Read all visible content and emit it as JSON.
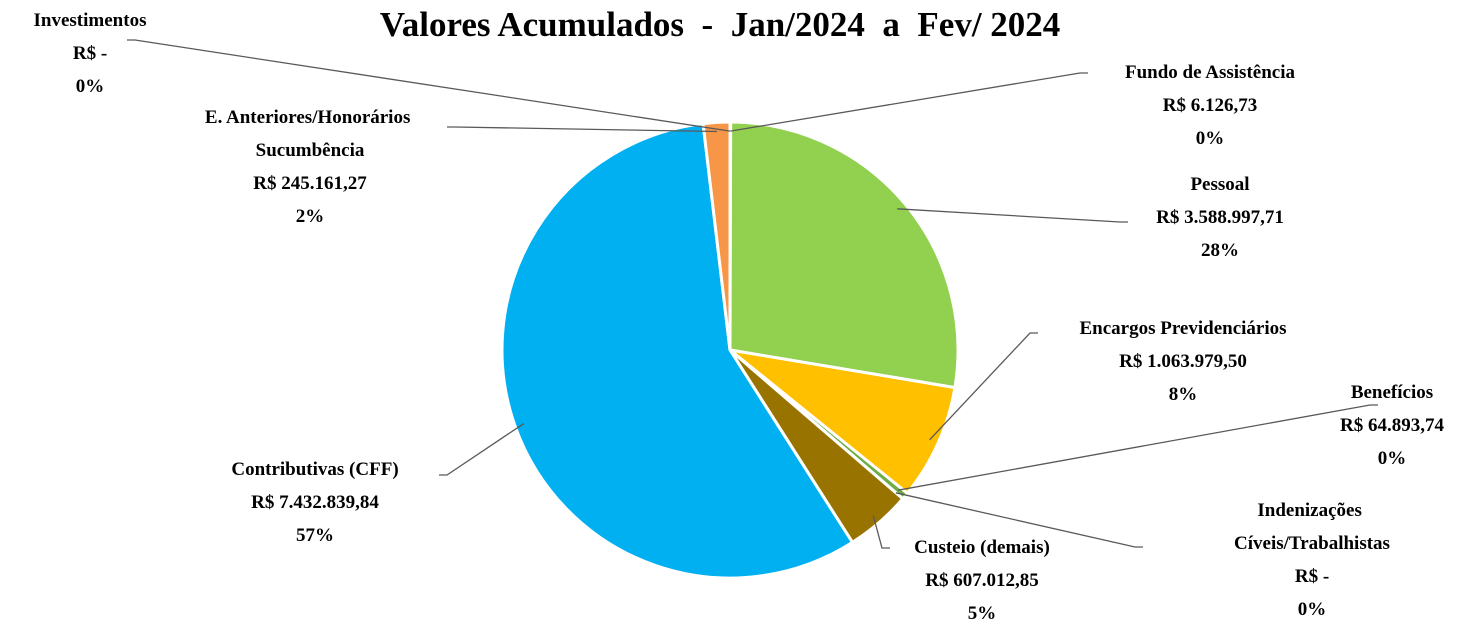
{
  "chart_data": {
    "type": "pie",
    "title": "Valores Acumulados  -  Jan/2024  a  Fev/ 2024",
    "categories": [
      "Fundo de Assistência",
      "Pessoal",
      "Encargos Previdenciários",
      "Benefícios",
      "Indenizações Cíveis/Trabalhistas",
      "Custeio (demais)",
      "Contributivas (CFF)",
      "E. Anteriores/Honorários Sucumbência",
      "Investimentos"
    ],
    "values": [
      6126.73,
      3588997.71,
      1063979.5,
      64893.74,
      0,
      607012.85,
      7432839.84,
      245161.27,
      0
    ],
    "value_labels": [
      "R$ 6.126,73",
      "R$ 3.588.997,71",
      "R$ 1.063.979,50",
      "R$ 64.893,74",
      "R$ -",
      "R$ 607.012,85",
      "R$ 7.432.839,84",
      "R$ 245.161,27",
      "R$ -"
    ],
    "percent_labels": [
      "0%",
      "28%",
      "8%",
      "0%",
      "0%",
      "5%",
      "57%",
      "2%",
      "0%"
    ],
    "colors": [
      "#a5a5a5",
      "#92d050",
      "#ffc000",
      "#70ad47",
      "#5b9bd5",
      "#997300",
      "#00b0f0",
      "#f79646",
      "#4472c4"
    ]
  }
}
